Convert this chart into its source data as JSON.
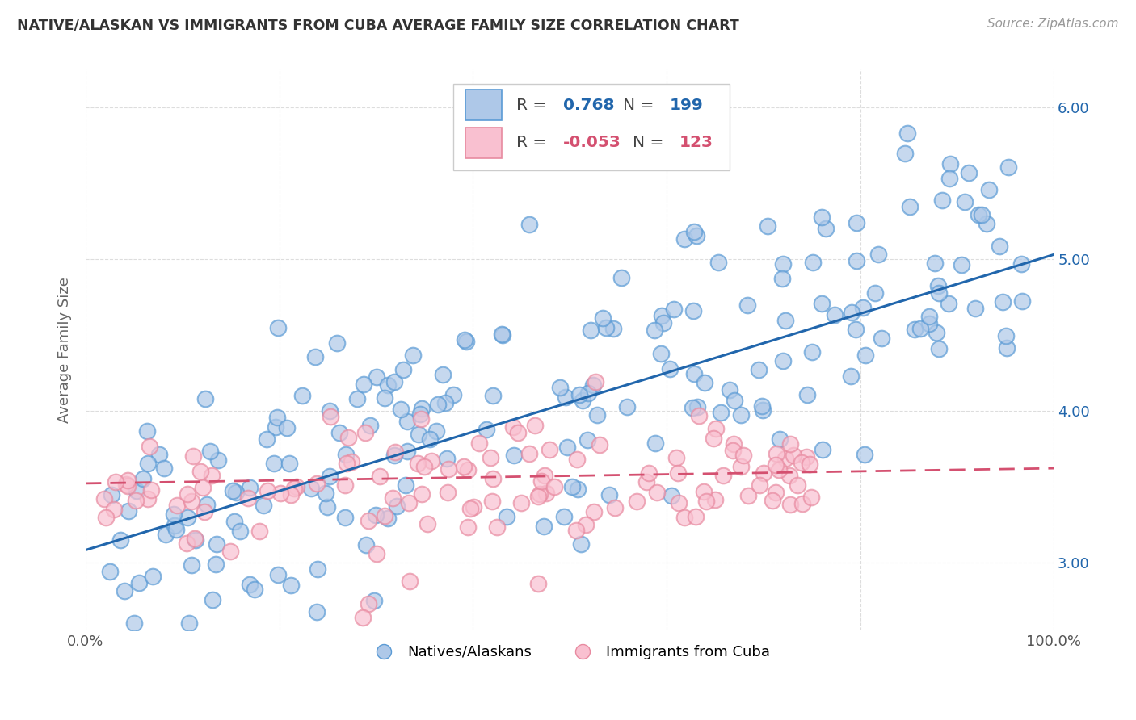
{
  "title": "NATIVE/ALASKAN VS IMMIGRANTS FROM CUBA AVERAGE FAMILY SIZE CORRELATION CHART",
  "source": "Source: ZipAtlas.com",
  "ylabel": "Average Family Size",
  "yticks": [
    3.0,
    4.0,
    5.0,
    6.0
  ],
  "xlim": [
    0.0,
    100.0
  ],
  "ylim": [
    2.55,
    6.25
  ],
  "blue_R": "0.768",
  "blue_N": "199",
  "pink_R": "-0.053",
  "pink_N": "123",
  "blue_color": "#aec8e8",
  "blue_edge_color": "#5b9bd5",
  "blue_line_color": "#2166ac",
  "pink_color": "#f9c0d0",
  "pink_edge_color": "#e88aa0",
  "pink_line_color": "#d45070",
  "legend_label_blue": "Natives/Alaskans",
  "legend_label_pink": "Immigrants from Cuba",
  "blue_slope": 0.0195,
  "blue_intercept": 3.08,
  "pink_slope": 0.001,
  "pink_intercept": 3.52,
  "seed": 42
}
